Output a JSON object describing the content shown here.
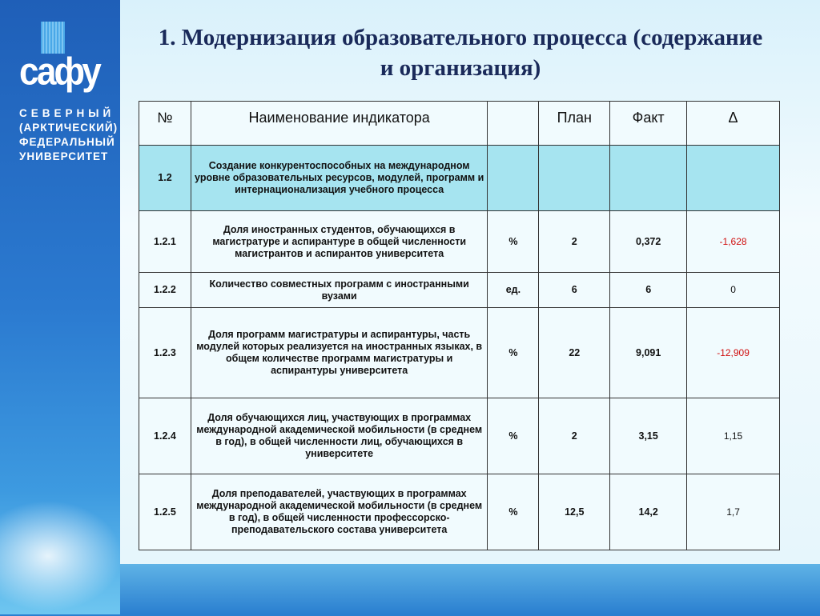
{
  "logo": {
    "text": "сафу",
    "university_lines": [
      "СЕВЕРНЫЙ",
      "(АРКТИЧЕСКИЙ)",
      "ФЕДЕРАЛЬНЫЙ",
      "УНИВЕРСИТЕТ"
    ]
  },
  "title": "1. Модернизация образовательного процесса (содержание и организация)",
  "table": {
    "headers": [
      "№",
      "Наименование индикатора",
      "",
      "План",
      "Факт",
      "Δ"
    ],
    "rows": [
      {
        "num": "1.2",
        "name": "Создание конкурентоспособных на международном уровне образовательных ресурсов, модулей, программ и интернационализация учебного процесса",
        "unit": "",
        "plan": "",
        "fact": "",
        "delta": "",
        "section": true
      },
      {
        "num": "1.2.1",
        "name": "Доля иностранных студентов, обучающихся в магистратуре и аспирантуре в общей численности магистрантов и аспирантов университета",
        "unit": "%",
        "plan": "2",
        "fact": "0,372",
        "delta": "-1,628",
        "negative": true
      },
      {
        "num": "1.2.2",
        "name": "Количество совместных программ с иностранными вузами",
        "unit": "ед.",
        "plan": "6",
        "fact": "6",
        "delta": "0"
      },
      {
        "num": "1.2.3",
        "name": "Доля программ магистратуры и аспирантуры, часть модулей которых реализуется на иностранных языках, в общем количестве программ магистратуры и аспирантуры университета",
        "unit": "%",
        "plan": "22",
        "fact": "9,091",
        "delta": "-12,909",
        "negative": true
      },
      {
        "num": "1.2.4",
        "name": "Доля обучающихся лиц, участвующих в программах международной академической мобильности (в среднем в год), в общей численности лиц, обучающихся в университете",
        "unit": "%",
        "plan": "2",
        "fact": "3,15",
        "delta": "1,15"
      },
      {
        "num": "1.2.5",
        "name": "Доля преподавателей, участвующих в программах международной академической мобильности (в среднем в год), в общей численности профессорско-преподавательского состава университета",
        "unit": "%",
        "plan": "12,5",
        "fact": "14,2",
        "delta": "1,7"
      }
    ]
  },
  "colors": {
    "negative": "#d01010",
    "section_row": "#a6e4f0",
    "title": "#1a2a5a"
  }
}
